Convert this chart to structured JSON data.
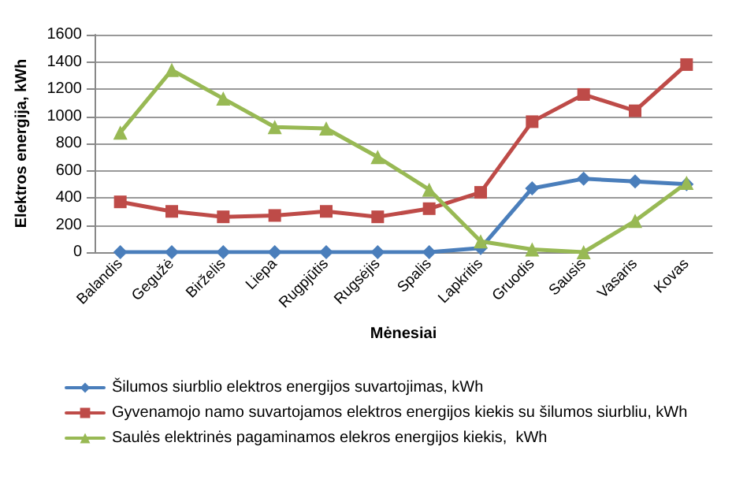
{
  "chart_data": {
    "type": "line",
    "xlabel": "Mėnesiai",
    "ylabel": "Elektros energija, kWh",
    "categories": [
      "Balandis",
      "Gegužė",
      "Birželis",
      "Liepa",
      "Rugpjūtis",
      "Rugsėjis",
      "Spalis",
      "Lapkritis",
      "Gruodis",
      "Sausis",
      "Vasaris",
      "Kovas"
    ],
    "series": [
      {
        "name": "Šilumos siurblio elektros energijos suvartojimas, kWh",
        "color": "#4a7ebb",
        "marker": "diamond",
        "values": [
          0,
          0,
          0,
          0,
          0,
          0,
          0,
          30,
          470,
          540,
          520,
          500
        ]
      },
      {
        "name": "Gyvenamojo namo suvartojamos elektros energijos kiekis su šilumos siurbliu, kWh",
        "color": "#be4b48",
        "marker": "square",
        "values": [
          370,
          300,
          260,
          270,
          300,
          260,
          320,
          440,
          960,
          1160,
          1040,
          1380
        ]
      },
      {
        "name": "Saulės elektrinės pagaminamos elekros energijos kiekis,  kWh",
        "color": "#98b954",
        "marker": "triangle",
        "values": [
          880,
          1340,
          1130,
          920,
          910,
          700,
          460,
          80,
          20,
          0,
          230,
          510
        ]
      }
    ],
    "ylim": [
      0,
      1600
    ],
    "yticks": [
      0,
      200,
      400,
      600,
      800,
      1000,
      1200,
      1400,
      1600
    ],
    "grid": "y",
    "legend": "bottom",
    "line_style": "solid"
  }
}
